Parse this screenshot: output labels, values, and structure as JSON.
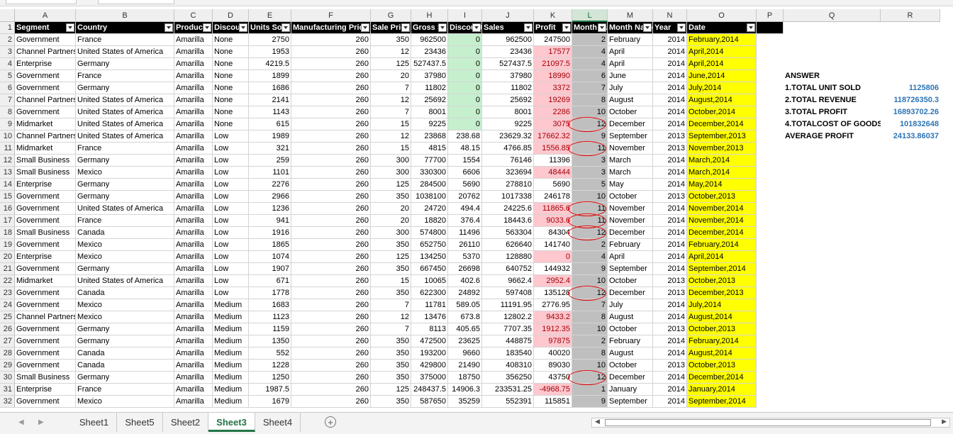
{
  "columns": [
    "A",
    "B",
    "C",
    "D",
    "E",
    "F",
    "G",
    "H",
    "I",
    "J",
    "K",
    "L",
    "M",
    "N",
    "O",
    "P",
    "Q",
    "R"
  ],
  "selected_column": "L",
  "headers": [
    "Segment",
    "Country",
    "Product",
    "Discount Band",
    "Units Sold",
    "Manufacturing Price",
    "Sale Price",
    "Gross Sales",
    "Discounts",
    "Sales",
    "Profit",
    "Month Number",
    "Month Name",
    "Year",
    "Date"
  ],
  "rows": [
    [
      "Government",
      "France",
      "Amarilla",
      "None",
      "2750",
      "260",
      "350",
      "962500",
      "0",
      "962500",
      "247500",
      "2",
      "February",
      "2014",
      "February,2014"
    ],
    [
      "Channel Partners",
      "United States of America",
      "Amarilla",
      "None",
      "1953",
      "260",
      "12",
      "23436",
      "0",
      "23436",
      "17577",
      "4",
      "April",
      "2014",
      "April,2014"
    ],
    [
      "Enterprise",
      "Germany",
      "Amarilla",
      "None",
      "4219.5",
      "260",
      "125",
      "527437.5",
      "0",
      "527437.5",
      "21097.5",
      "4",
      "April",
      "2014",
      "April,2014"
    ],
    [
      "Government",
      "France",
      "Amarilla",
      "None",
      "1899",
      "260",
      "20",
      "37980",
      "0",
      "37980",
      "18990",
      "6",
      "June",
      "2014",
      "June,2014"
    ],
    [
      "Government",
      "Germany",
      "Amarilla",
      "None",
      "1686",
      "260",
      "7",
      "11802",
      "0",
      "11802",
      "3372",
      "7",
      "July",
      "2014",
      "July,2014"
    ],
    [
      "Channel Partners",
      "United States of America",
      "Amarilla",
      "None",
      "2141",
      "260",
      "12",
      "25692",
      "0",
      "25692",
      "19269",
      "8",
      "August",
      "2014",
      "August,2014"
    ],
    [
      "Government",
      "United States of America",
      "Amarilla",
      "None",
      "1143",
      "260",
      "7",
      "8001",
      "0",
      "8001",
      "2286",
      "10",
      "October",
      "2014",
      "October,2014"
    ],
    [
      "Midmarket",
      "United States of America",
      "Amarilla",
      "None",
      "615",
      "260",
      "15",
      "9225",
      "0",
      "9225",
      "3075",
      "12",
      "December",
      "2014",
      "December,2014"
    ],
    [
      "Channel Partners",
      "United States of America",
      "Amarilla",
      "Low",
      "1989",
      "260",
      "12",
      "23868",
      "238.68",
      "23629.32",
      "17662.32",
      "9",
      "September",
      "2013",
      "September,2013"
    ],
    [
      "Midmarket",
      "France",
      "Amarilla",
      "Low",
      "321",
      "260",
      "15",
      "4815",
      "48.15",
      "4766.85",
      "1556.85",
      "11",
      "November",
      "2013",
      "November,2013"
    ],
    [
      "Small Business",
      "Germany",
      "Amarilla",
      "Low",
      "259",
      "260",
      "300",
      "77700",
      "1554",
      "76146",
      "11396",
      "3",
      "March",
      "2014",
      "March,2014"
    ],
    [
      "Small Business",
      "Mexico",
      "Amarilla",
      "Low",
      "1101",
      "260",
      "300",
      "330300",
      "6606",
      "323694",
      "48444",
      "3",
      "March",
      "2014",
      "March,2014"
    ],
    [
      "Enterprise",
      "Germany",
      "Amarilla",
      "Low",
      "2276",
      "260",
      "125",
      "284500",
      "5690",
      "278810",
      "5690",
      "5",
      "May",
      "2014",
      "May,2014"
    ],
    [
      "Government",
      "Germany",
      "Amarilla",
      "Low",
      "2966",
      "260",
      "350",
      "1038100",
      "20762",
      "1017338",
      "246178",
      "10",
      "October",
      "2013",
      "October,2013"
    ],
    [
      "Government",
      "United States of America",
      "Amarilla",
      "Low",
      "1236",
      "260",
      "20",
      "24720",
      "494.4",
      "24225.6",
      "11865.6",
      "11",
      "November",
      "2014",
      "November,2014"
    ],
    [
      "Government",
      "France",
      "Amarilla",
      "Low",
      "941",
      "260",
      "20",
      "18820",
      "376.4",
      "18443.6",
      "9033.6",
      "11",
      "November",
      "2014",
      "November,2014"
    ],
    [
      "Small Business",
      "Canada",
      "Amarilla",
      "Low",
      "1916",
      "260",
      "300",
      "574800",
      "11496",
      "563304",
      "84304",
      "12",
      "December",
      "2014",
      "December,2014"
    ],
    [
      "Government",
      "Mexico",
      "Amarilla",
      "Low",
      "1865",
      "260",
      "350",
      "652750",
      "26110",
      "626640",
      "141740",
      "2",
      "February",
      "2014",
      "February,2014"
    ],
    [
      "Enterprise",
      "Mexico",
      "Amarilla",
      "Low",
      "1074",
      "260",
      "125",
      "134250",
      "5370",
      "128880",
      "0",
      "4",
      "April",
      "2014",
      "April,2014"
    ],
    [
      "Government",
      "Germany",
      "Amarilla",
      "Low",
      "1907",
      "260",
      "350",
      "667450",
      "26698",
      "640752",
      "144932",
      "9",
      "September",
      "2014",
      "September,2014"
    ],
    [
      "Midmarket",
      "United States of America",
      "Amarilla",
      "Low",
      "671",
      "260",
      "15",
      "10065",
      "402.6",
      "9662.4",
      "2952.4",
      "10",
      "October",
      "2013",
      "October,2013"
    ],
    [
      "Government",
      "Canada",
      "Amarilla",
      "Low",
      "1778",
      "260",
      "350",
      "622300",
      "24892",
      "597408",
      "135128",
      "12",
      "December",
      "2013",
      "December,2013"
    ],
    [
      "Government",
      "Mexico",
      "Amarilla",
      "Medium",
      "1683",
      "260",
      "7",
      "11781",
      "589.05",
      "11191.95",
      "2776.95",
      "7",
      "July",
      "2014",
      "July,2014"
    ],
    [
      "Channel Partners",
      "Mexico",
      "Amarilla",
      "Medium",
      "1123",
      "260",
      "12",
      "13476",
      "673.8",
      "12802.2",
      "9433.2",
      "8",
      "August",
      "2014",
      "August,2014"
    ],
    [
      "Government",
      "Germany",
      "Amarilla",
      "Medium",
      "1159",
      "260",
      "7",
      "8113",
      "405.65",
      "7707.35",
      "1912.35",
      "10",
      "October",
      "2013",
      "October,2013"
    ],
    [
      "Government",
      "Germany",
      "Amarilla",
      "Medium",
      "1350",
      "260",
      "350",
      "472500",
      "23625",
      "448875",
      "97875",
      "2",
      "February",
      "2014",
      "February,2014"
    ],
    [
      "Government",
      "Canada",
      "Amarilla",
      "Medium",
      "552",
      "260",
      "350",
      "193200",
      "9660",
      "183540",
      "40020",
      "8",
      "August",
      "2014",
      "August,2014"
    ],
    [
      "Government",
      "Canada",
      "Amarilla",
      "Medium",
      "1228",
      "260",
      "350",
      "429800",
      "21490",
      "408310",
      "89030",
      "10",
      "October",
      "2013",
      "October,2013"
    ],
    [
      "Small Business",
      "Germany",
      "Amarilla",
      "Medium",
      "1250",
      "260",
      "350",
      "375000",
      "18750",
      "356250",
      "43750",
      "12",
      "December",
      "2014",
      "December,2014"
    ],
    [
      "Enterprise",
      "France",
      "Amarilla",
      "Medium",
      "1987.5",
      "260",
      "125",
      "248437.5",
      "14906.3",
      "233531.25",
      "-4968.75",
      "1",
      "January",
      "2014",
      "January,2014"
    ],
    [
      "Government",
      "Mexico",
      "Amarilla",
      "Medium",
      "1679",
      "260",
      "350",
      "587650",
      "35259",
      "552391",
      "115851",
      "9",
      "September",
      "2014",
      "September,2014"
    ]
  ],
  "profit_highlight_rows": [
    3,
    4,
    5,
    6,
    7,
    8,
    9,
    10,
    11,
    13,
    16,
    17,
    20,
    22,
    25,
    26,
    27,
    31
  ],
  "circled_rows": [
    9,
    11,
    16,
    17,
    18,
    23,
    30
  ],
  "answer": {
    "title": "ANSWER",
    "items": [
      {
        "label": "1.TOTAL UNIT SOLD",
        "value": "1125806"
      },
      {
        "label": "2.TOTAL REVENUE",
        "value": "118726350.3"
      },
      {
        "label": "3.TOTAL PROFIT",
        "value": "16893702.26"
      },
      {
        "label": "4.TOTALCOST OF GOODS",
        "value": "101832648"
      },
      {
        "label": "AVERAGE PROFIT",
        "value": "24133.86037"
      }
    ]
  },
  "sheets": [
    "Sheet1",
    "Sheet5",
    "Sheet2",
    "Sheet3",
    "Sheet4"
  ],
  "active_sheet": "Sheet3",
  "add_sheet_glyph": "+",
  "colors": {
    "header_bg": "#000000",
    "profit_red_bg": "#ffc7ce",
    "profit_red_text": "#9c0006",
    "discount_green_bg": "#c6efce",
    "month_gray_bg": "#bfbfbf",
    "date_yellow_bg": "#ffff00",
    "answer_blue": "#2e75b6",
    "accent_green": "#217346"
  }
}
